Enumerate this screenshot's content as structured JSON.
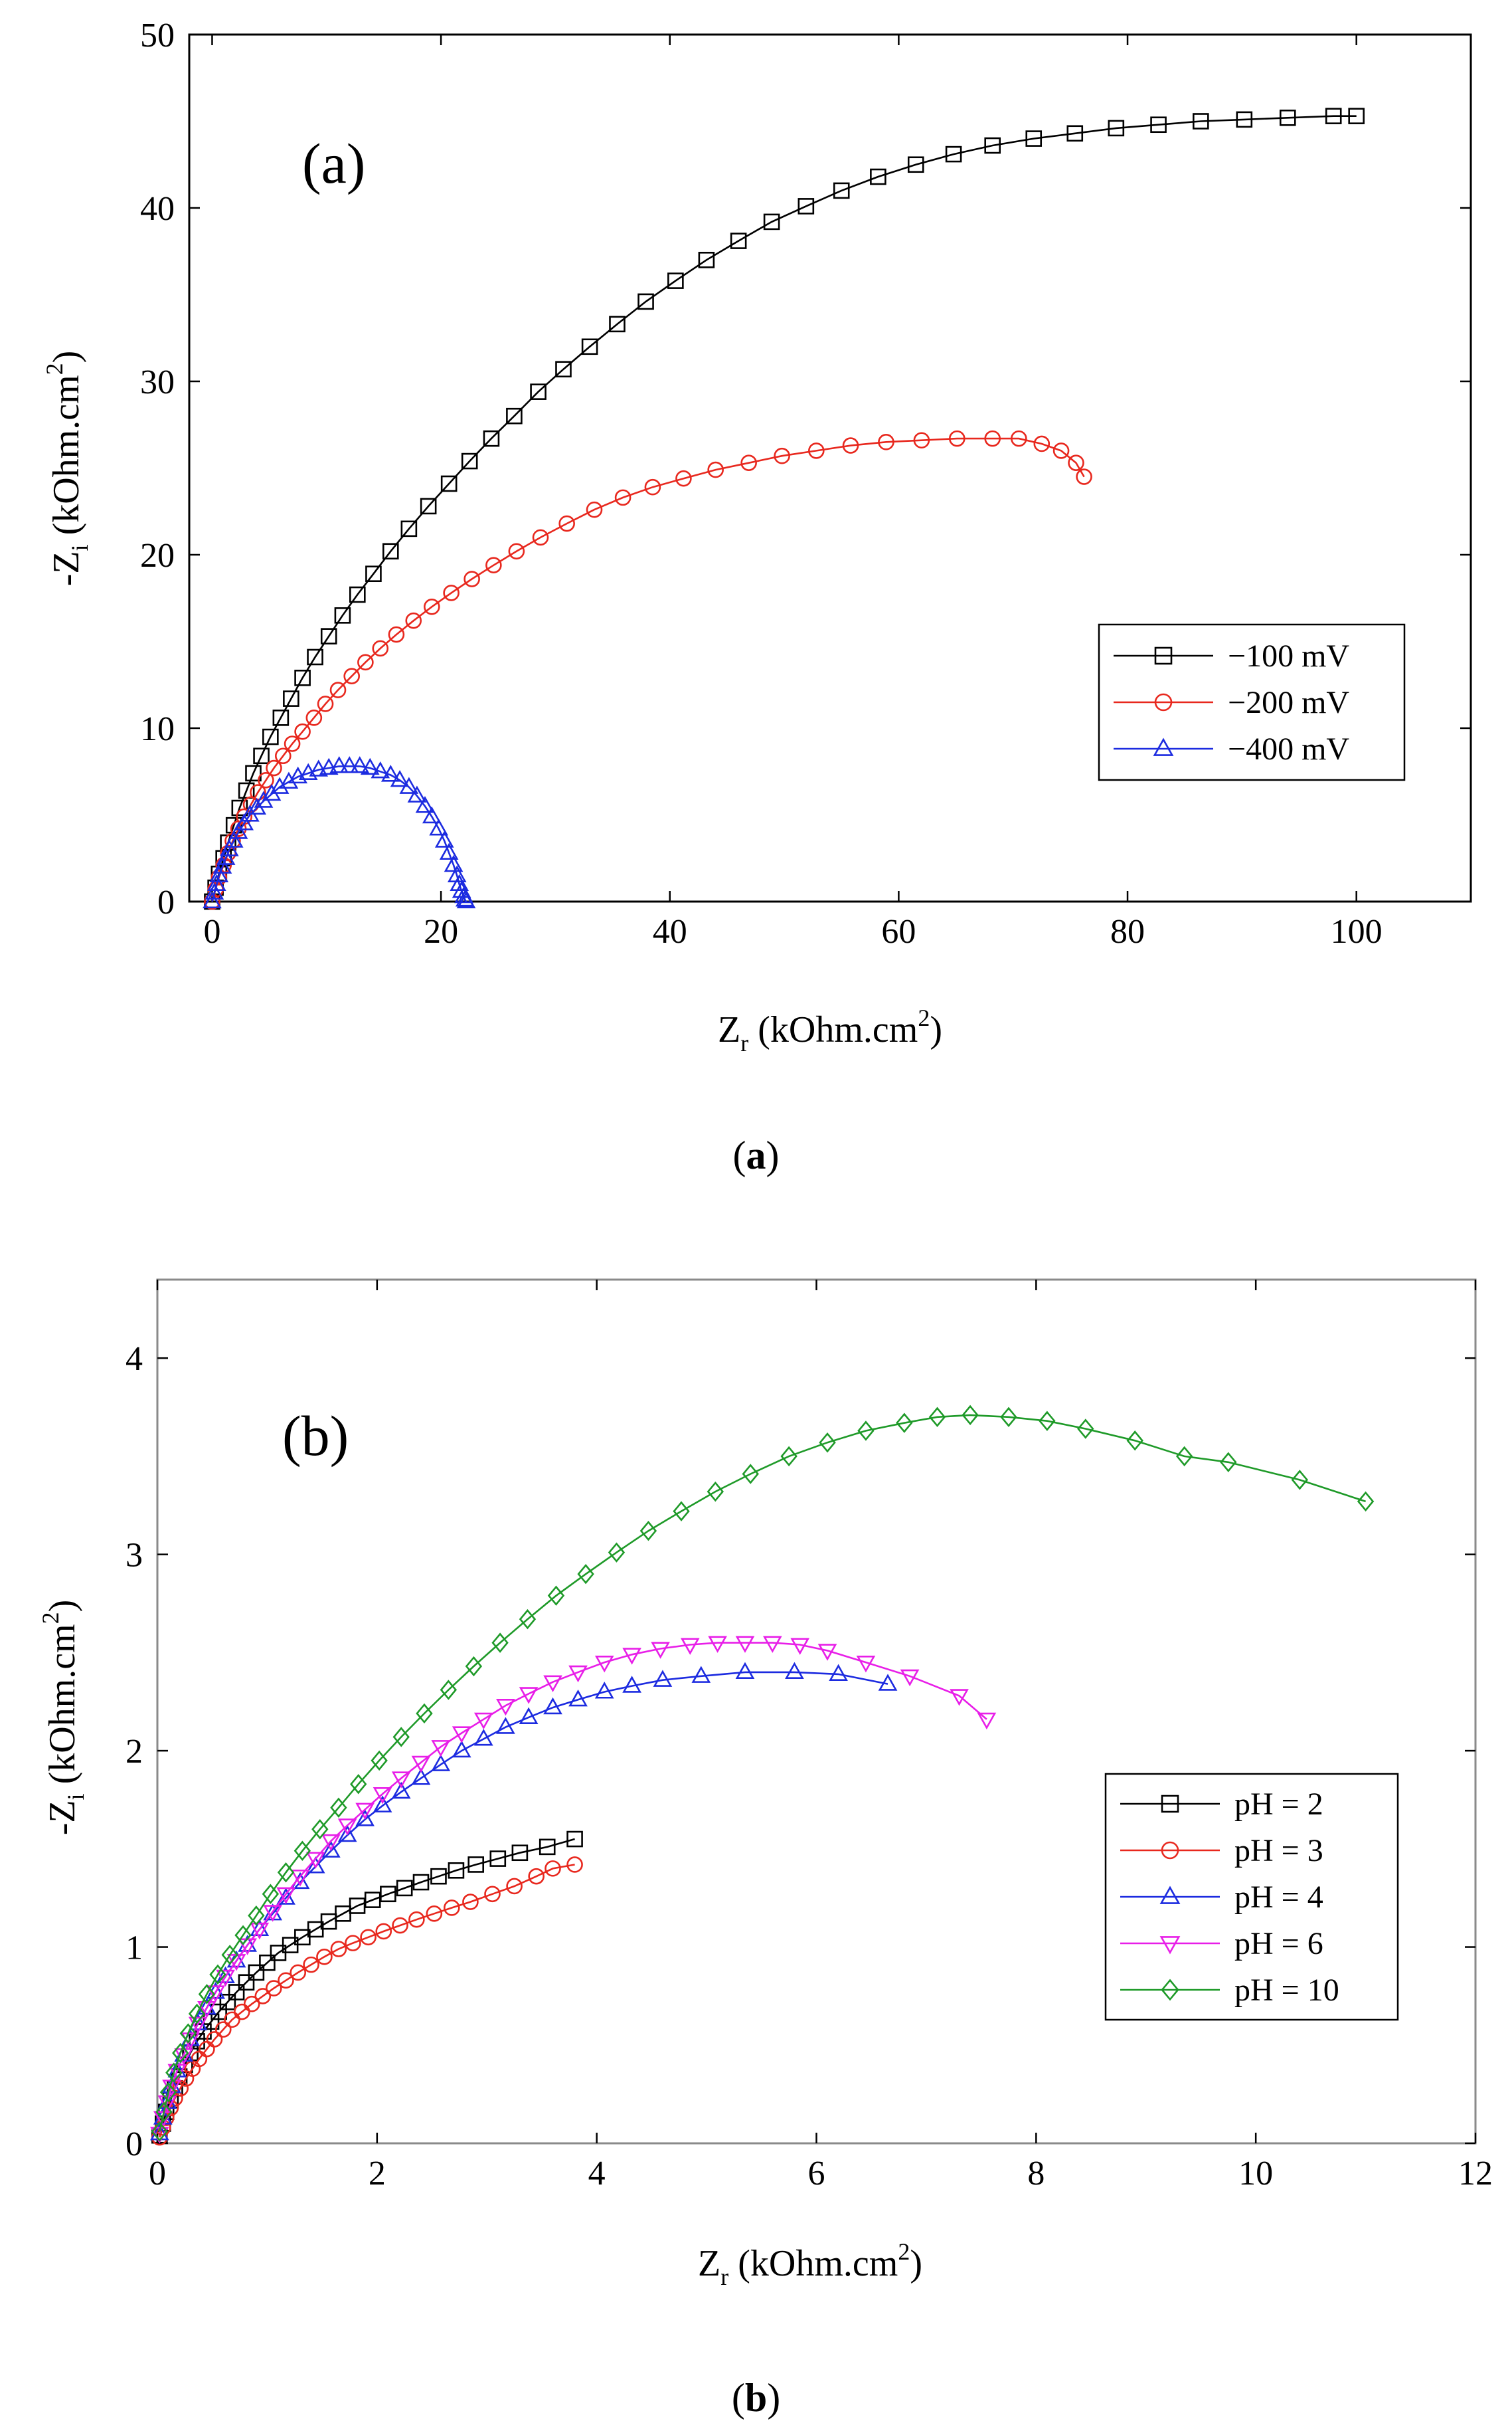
{
  "figure": {
    "caption_a": {
      "open": "(",
      "letter": "a",
      "close": ")"
    },
    "caption_b": {
      "open": "(",
      "letter": "b",
      "close": ")"
    }
  },
  "chart_data": [
    {
      "type": "line",
      "panel_label": "(a)",
      "xlabel": {
        "main": "Z",
        "sub": "r",
        "unit": " (kOhm.cm",
        "sup": "2",
        "end": ")"
      },
      "ylabel": {
        "prefix": "-Z",
        "sub": "i",
        "unit": " (kOhm.cm",
        "sup": "2",
        "end": ")"
      },
      "xlim": [
        -2,
        110
      ],
      "ylim": [
        0,
        50
      ],
      "xticks": [
        0,
        20,
        40,
        60,
        80,
        100
      ],
      "yticks": [
        0,
        10,
        20,
        30,
        40,
        50
      ],
      "legend_position": "right",
      "series": [
        {
          "name": "−100 mV",
          "color": "#000000",
          "marker": "square",
          "x": [
            0,
            0.3,
            0.6,
            1.0,
            1.4,
            1.9,
            2.4,
            3.0,
            3.6,
            4.3,
            5.1,
            6.0,
            6.9,
            7.9,
            9.0,
            10.2,
            11.4,
            12.7,
            14.1,
            15.6,
            17.2,
            18.9,
            20.7,
            22.5,
            24.4,
            26.4,
            28.5,
            30.7,
            33.0,
            35.4,
            37.9,
            40.5,
            43.2,
            46.0,
            48.9,
            51.9,
            55.0,
            58.2,
            61.5,
            64.8,
            68.2,
            71.8,
            75.4,
            79.0,
            82.7,
            86.4,
            90.2,
            94.0,
            98.0,
            100.0
          ],
          "y": [
            0,
            0.8,
            1.6,
            2.5,
            3.4,
            4.4,
            5.4,
            6.4,
            7.4,
            8.4,
            9.5,
            10.6,
            11.7,
            12.9,
            14.1,
            15.3,
            16.5,
            17.7,
            18.9,
            20.2,
            21.5,
            22.8,
            24.1,
            25.4,
            26.7,
            28.0,
            29.4,
            30.7,
            32.0,
            33.3,
            34.6,
            35.8,
            37.0,
            38.1,
            39.2,
            40.1,
            41.0,
            41.8,
            42.5,
            43.1,
            43.6,
            44.0,
            44.3,
            44.6,
            44.8,
            45.0,
            45.1,
            45.2,
            45.3,
            45.3
          ]
        },
        {
          "name": "−200 mV",
          "color": "#e8281e",
          "marker": "circle",
          "x": [
            0,
            0.3,
            0.6,
            1.0,
            1.4,
            1.8,
            2.3,
            2.8,
            3.4,
            4.0,
            4.7,
            5.4,
            6.2,
            7.0,
            7.9,
            8.9,
            9.9,
            11.0,
            12.2,
            13.4,
            14.7,
            16.1,
            17.6,
            19.2,
            20.9,
            22.7,
            24.6,
            26.6,
            28.7,
            31.0,
            33.4,
            35.9,
            38.5,
            41.2,
            44.0,
            46.9,
            49.8,
            52.8,
            55.8,
            58.9,
            62.0,
            65.1,
            68.2,
            70.5,
            72.5,
            74.2,
            75.5,
            76.2
          ],
          "y": [
            0,
            0.7,
            1.4,
            2.1,
            2.8,
            3.5,
            4.2,
            4.9,
            5.6,
            6.3,
            7.0,
            7.7,
            8.4,
            9.1,
            9.8,
            10.6,
            11.4,
            12.2,
            13.0,
            13.8,
            14.6,
            15.4,
            16.2,
            17.0,
            17.8,
            18.6,
            19.4,
            20.2,
            21.0,
            21.8,
            22.6,
            23.3,
            23.9,
            24.4,
            24.9,
            25.3,
            25.7,
            26.0,
            26.3,
            26.5,
            26.6,
            26.7,
            26.7,
            26.7,
            26.4,
            26.0,
            25.3,
            24.5
          ]
        },
        {
          "name": "−400 mV",
          "color": "#1c2be0",
          "marker": "triangle-up",
          "x": [
            0,
            0.2,
            0.4,
            0.6,
            0.9,
            1.2,
            1.5,
            1.9,
            2.3,
            2.8,
            3.3,
            3.9,
            4.5,
            5.2,
            5.9,
            6.7,
            7.5,
            8.4,
            9.3,
            10.2,
            11.1,
            12.0,
            12.9,
            13.8,
            14.7,
            15.6,
            16.4,
            17.2,
            17.9,
            18.6,
            19.2,
            19.8,
            20.3,
            20.7,
            21.1,
            21.4,
            21.6,
            21.8,
            22.0,
            22.1,
            22.2
          ],
          "y": [
            0,
            0.5,
            1.0,
            1.5,
            2.0,
            2.5,
            3.0,
            3.5,
            4.0,
            4.5,
            5.0,
            5.4,
            5.8,
            6.2,
            6.6,
            6.9,
            7.2,
            7.4,
            7.6,
            7.7,
            7.8,
            7.8,
            7.8,
            7.7,
            7.5,
            7.3,
            7.0,
            6.6,
            6.1,
            5.5,
            4.9,
            4.2,
            3.5,
            2.8,
            2.1,
            1.5,
            1.0,
            0.6,
            0.3,
            0.1,
            0.0
          ]
        }
      ]
    },
    {
      "type": "line",
      "panel_label": "(b)",
      "xlabel": {
        "main": "Z",
        "sub": "r",
        "unit": " (kOhm.cm",
        "sup": "2",
        "end": ")"
      },
      "ylabel": {
        "prefix": "-Z",
        "sub": "i",
        "unit": " (kOhm.cm",
        "sup": "2",
        "end": ")"
      },
      "xlim": [
        0,
        12
      ],
      "ylim": [
        0,
        4.4
      ],
      "xticks": [
        0,
        2,
        4,
        6,
        8,
        10,
        12
      ],
      "yticks": [
        0,
        1,
        2,
        3,
        4
      ],
      "legend_position": "bottom-right",
      "series": [
        {
          "name": "pH = 2",
          "color": "#000000",
          "marker": "square",
          "x": [
            0.02,
            0.05,
            0.08,
            0.12,
            0.16,
            0.2,
            0.25,
            0.3,
            0.36,
            0.42,
            0.49,
            0.56,
            0.64,
            0.72,
            0.81,
            0.9,
            1.0,
            1.1,
            1.21,
            1.32,
            1.44,
            1.56,
            1.69,
            1.82,
            1.96,
            2.1,
            2.25,
            2.4,
            2.56,
            2.72,
            2.9,
            3.1,
            3.3,
            3.55,
            3.8
          ],
          "y": [
            0.04,
            0.1,
            0.16,
            0.22,
            0.28,
            0.34,
            0.4,
            0.46,
            0.52,
            0.57,
            0.62,
            0.67,
            0.72,
            0.77,
            0.82,
            0.87,
            0.92,
            0.97,
            1.01,
            1.05,
            1.09,
            1.13,
            1.17,
            1.21,
            1.24,
            1.27,
            1.3,
            1.33,
            1.36,
            1.39,
            1.42,
            1.45,
            1.48,
            1.51,
            1.55
          ]
        },
        {
          "name": "pH = 3",
          "color": "#e8281e",
          "marker": "circle",
          "x": [
            0.02,
            0.05,
            0.08,
            0.12,
            0.16,
            0.21,
            0.26,
            0.32,
            0.38,
            0.45,
            0.52,
            0.6,
            0.68,
            0.77,
            0.86,
            0.96,
            1.06,
            1.17,
            1.28,
            1.4,
            1.52,
            1.65,
            1.78,
            1.92,
            2.06,
            2.21,
            2.36,
            2.52,
            2.68,
            2.85,
            3.05,
            3.25,
            3.45,
            3.6,
            3.8
          ],
          "y": [
            0.03,
            0.08,
            0.13,
            0.18,
            0.23,
            0.28,
            0.33,
            0.38,
            0.43,
            0.48,
            0.53,
            0.58,
            0.63,
            0.67,
            0.71,
            0.75,
            0.79,
            0.83,
            0.87,
            0.91,
            0.95,
            0.99,
            1.02,
            1.05,
            1.08,
            1.11,
            1.14,
            1.17,
            1.2,
            1.23,
            1.27,
            1.31,
            1.36,
            1.4,
            1.42
          ]
        },
        {
          "name": "pH = 4",
          "color": "#1c2be0",
          "marker": "triangle-up",
          "x": [
            0.02,
            0.05,
            0.09,
            0.13,
            0.18,
            0.24,
            0.3,
            0.37,
            0.45,
            0.53,
            0.62,
            0.72,
            0.82,
            0.93,
            1.05,
            1.17,
            1.3,
            1.44,
            1.58,
            1.73,
            1.89,
            2.05,
            2.22,
            2.4,
            2.58,
            2.77,
            2.97,
            3.17,
            3.38,
            3.6,
            3.83,
            4.07,
            4.32,
            4.6,
            4.95,
            5.35,
            5.8,
            6.2,
            6.65
          ],
          "y": [
            0.05,
            0.13,
            0.21,
            0.29,
            0.37,
            0.45,
            0.53,
            0.61,
            0.69,
            0.77,
            0.85,
            0.93,
            1.01,
            1.09,
            1.17,
            1.25,
            1.33,
            1.41,
            1.49,
            1.57,
            1.65,
            1.72,
            1.79,
            1.86,
            1.93,
            2.0,
            2.06,
            2.12,
            2.17,
            2.22,
            2.26,
            2.3,
            2.33,
            2.36,
            2.38,
            2.4,
            2.4,
            2.39,
            2.34
          ]
        },
        {
          "name": "pH = 6",
          "color": "#e81ee8",
          "marker": "triangle-down",
          "x": [
            0.02,
            0.05,
            0.09,
            0.13,
            0.18,
            0.24,
            0.3,
            0.37,
            0.45,
            0.53,
            0.62,
            0.72,
            0.82,
            0.93,
            1.05,
            1.17,
            1.3,
            1.44,
            1.58,
            1.73,
            1.89,
            2.05,
            2.22,
            2.4,
            2.58,
            2.77,
            2.97,
            3.17,
            3.38,
            3.6,
            3.83,
            4.07,
            4.32,
            4.58,
            4.85,
            5.1,
            5.35,
            5.6,
            5.85,
            6.1,
            6.45,
            6.85,
            7.3,
            7.55
          ],
          "y": [
            0.05,
            0.13,
            0.21,
            0.29,
            0.37,
            0.45,
            0.53,
            0.61,
            0.69,
            0.77,
            0.85,
            0.93,
            1.01,
            1.09,
            1.18,
            1.27,
            1.36,
            1.45,
            1.54,
            1.62,
            1.7,
            1.78,
            1.86,
            1.94,
            2.02,
            2.09,
            2.16,
            2.23,
            2.29,
            2.35,
            2.4,
            2.45,
            2.49,
            2.52,
            2.54,
            2.55,
            2.55,
            2.55,
            2.54,
            2.51,
            2.45,
            2.38,
            2.28,
            2.16
          ]
        },
        {
          "name": "pH = 10",
          "color": "#1e9a28",
          "marker": "diamond",
          "x": [
            0.02,
            0.06,
            0.1,
            0.15,
            0.21,
            0.28,
            0.36,
            0.45,
            0.55,
            0.66,
            0.78,
            0.9,
            1.03,
            1.17,
            1.32,
            1.48,
            1.65,
            1.83,
            2.02,
            2.22,
            2.43,
            2.65,
            2.88,
            3.12,
            3.37,
            3.63,
            3.9,
            4.18,
            4.47,
            4.77,
            5.08,
            5.4,
            5.75,
            6.1,
            6.45,
            6.8,
            7.1,
            7.4,
            7.75,
            8.1,
            8.45,
            8.9,
            9.35,
            9.75,
            10.4,
            11.0
          ],
          "y": [
            0.06,
            0.16,
            0.26,
            0.36,
            0.46,
            0.56,
            0.66,
            0.76,
            0.86,
            0.96,
            1.06,
            1.16,
            1.27,
            1.38,
            1.49,
            1.6,
            1.71,
            1.83,
            1.95,
            2.07,
            2.19,
            2.31,
            2.43,
            2.55,
            2.67,
            2.79,
            2.9,
            3.01,
            3.12,
            3.22,
            3.32,
            3.41,
            3.5,
            3.57,
            3.63,
            3.67,
            3.7,
            3.71,
            3.7,
            3.68,
            3.64,
            3.58,
            3.5,
            3.47,
            3.38,
            3.27
          ]
        }
      ]
    }
  ]
}
